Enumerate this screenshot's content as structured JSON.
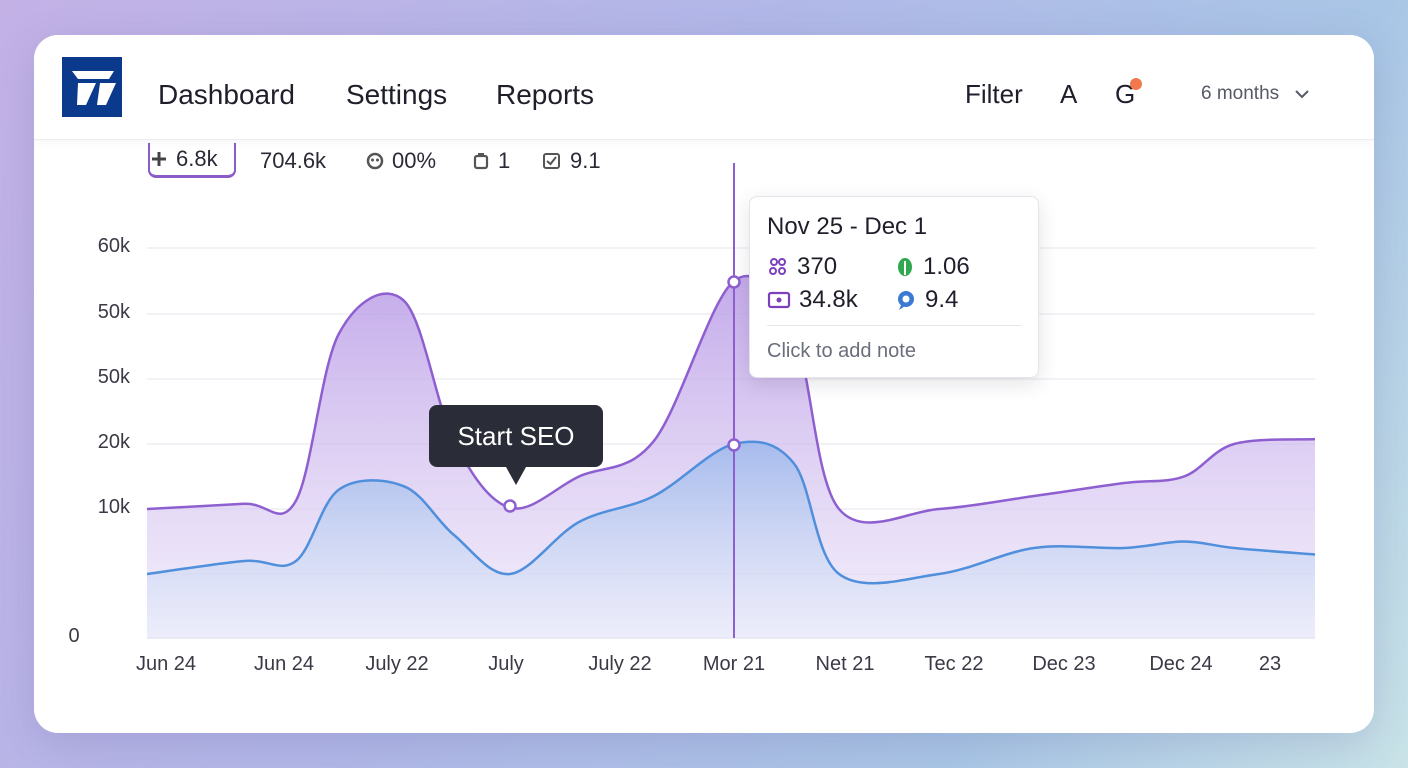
{
  "nav": {
    "items": [
      "Dashboard",
      "Settings",
      "Reports"
    ],
    "filter_label": "Filter",
    "a_label": "A",
    "g_label": "G",
    "range_label": "6 months",
    "notification_color": "#f07a4e"
  },
  "metrics": [
    {
      "icon": "plus-icon",
      "value": "6.8k"
    },
    {
      "icon": "",
      "value": "704.6k"
    },
    {
      "icon": "gauge-icon",
      "value": "00%"
    },
    {
      "icon": "cube-icon",
      "value": "1"
    },
    {
      "icon": "checkbox-icon",
      "value": "9.1"
    }
  ],
  "annotation": {
    "label": "Start SEO"
  },
  "tooltip": {
    "title": "Nov 25 - Dec 1",
    "values": [
      {
        "icon": "people-icon",
        "value": "370",
        "color": "#7b3fbf"
      },
      {
        "icon": "leaf-icon",
        "value": "1.06",
        "color": "#2fa84f"
      },
      {
        "icon": "card-icon",
        "value": "34.8k",
        "color": "#7b3fbf"
      },
      {
        "icon": "pin-icon",
        "value": "9.4",
        "color": "#3b7ad4"
      }
    ],
    "note": "Click to add note"
  },
  "chart_data": {
    "type": "area",
    "y_tick_labels": [
      "60k",
      "50k",
      "50k",
      "20k",
      "10k",
      "0"
    ],
    "x_tick_labels": [
      "Jun 24",
      "Jun 24",
      "July 22",
      "July",
      "July 22",
      "Mor 21",
      "Net 21",
      "Tec 22",
      "Dec 23",
      "Dec 24",
      "23"
    ],
    "grid": true,
    "colors": {
      "series1": "#8e5fd0",
      "series2": "#4f8fdc"
    },
    "series": [
      {
        "values": [
          10000,
          10800,
          11300,
          47000,
          52000,
          21000,
          10200,
          15000,
          21000,
          55000,
          47000,
          10000,
          10000,
          12000,
          14000,
          15000,
          20000,
          21500
        ]
      },
      {
        "values": [
          5000,
          6000,
          6000,
          13000,
          13500,
          8000,
          5000,
          9000,
          12000,
          20000,
          17000,
          5000,
          5000,
          7000,
          7000,
          7500,
          7000,
          6500
        ]
      }
    ]
  }
}
